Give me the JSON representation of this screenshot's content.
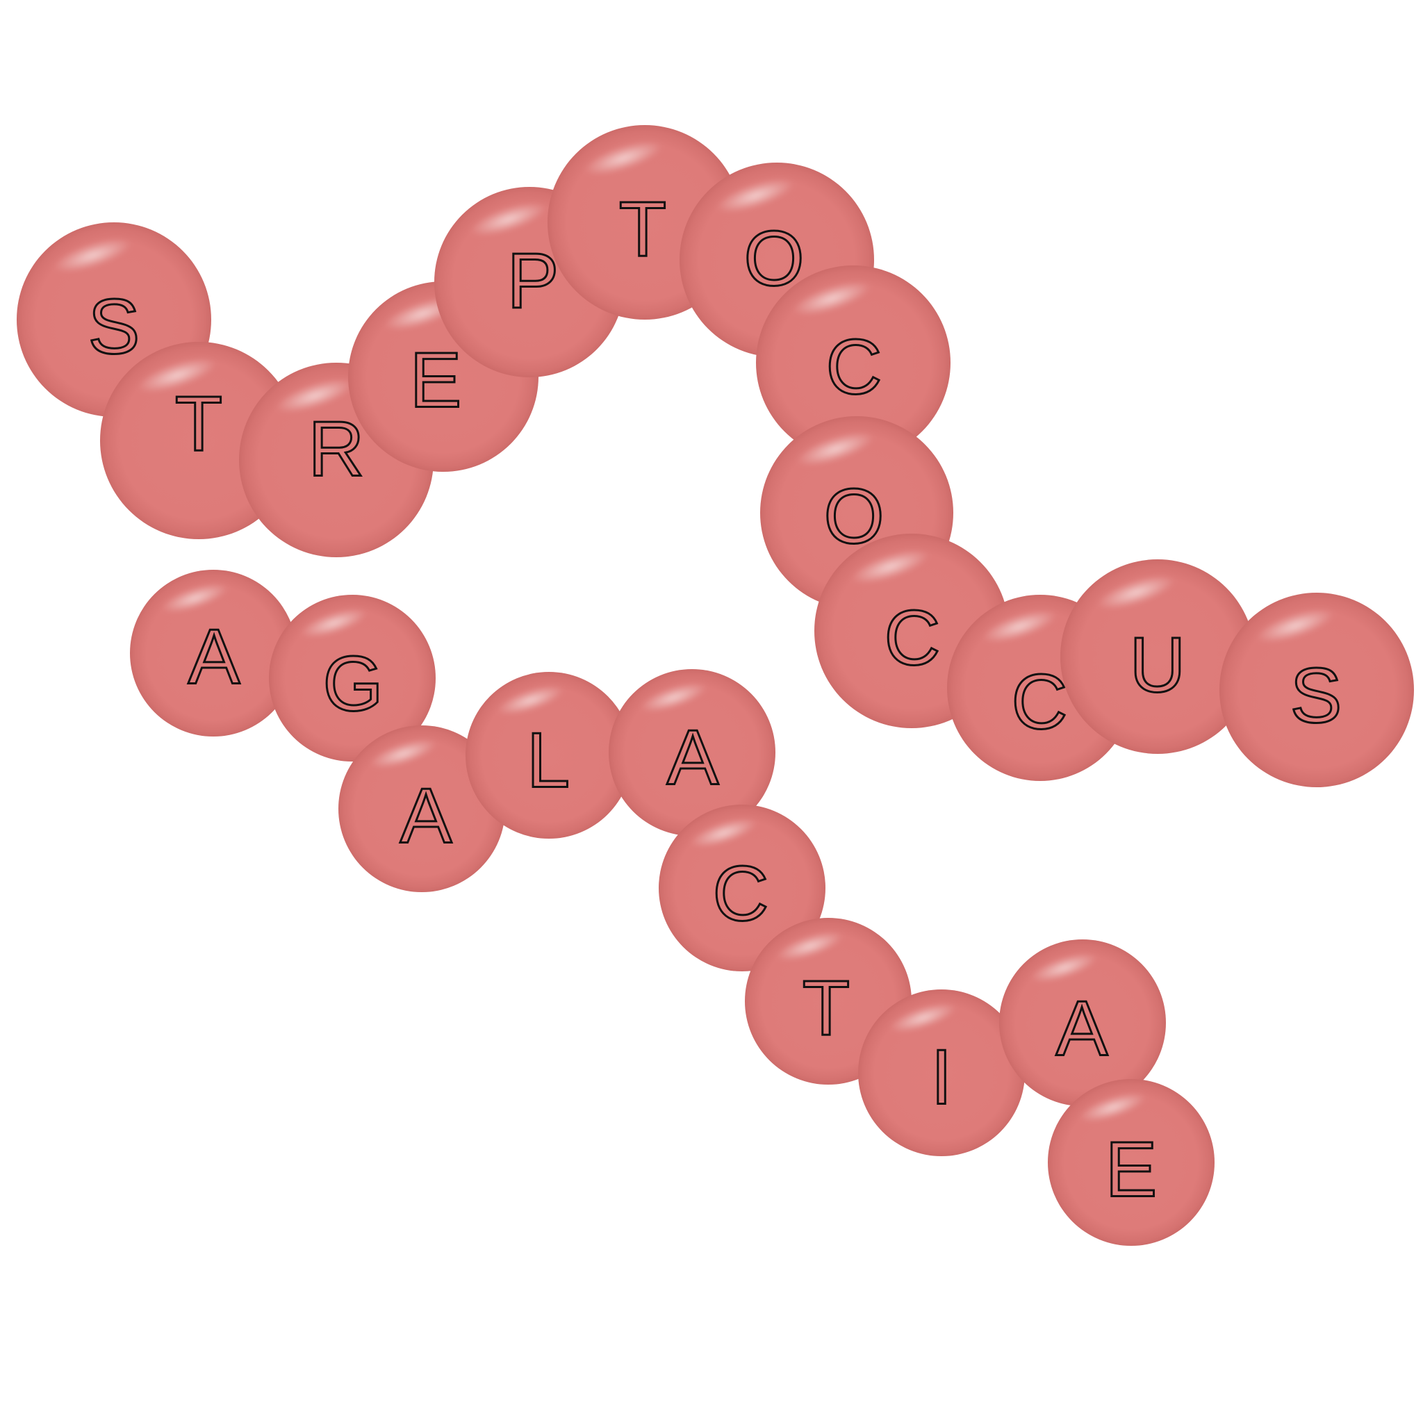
{
  "colors": {
    "coccus": "#de7c7a",
    "letter_stroke": "#111111",
    "background": "#ffffff"
  },
  "chains": [
    {
      "name": "genus",
      "letters": [
        "S",
        "T",
        "R",
        "E",
        "P",
        "T",
        "O",
        "C",
        "O",
        "C",
        "C",
        "U",
        "S"
      ]
    },
    {
      "name": "species",
      "letters": [
        "A",
        "G",
        "A",
        "L",
        "A",
        "C",
        "T",
        "I",
        "A",
        "E"
      ]
    }
  ]
}
